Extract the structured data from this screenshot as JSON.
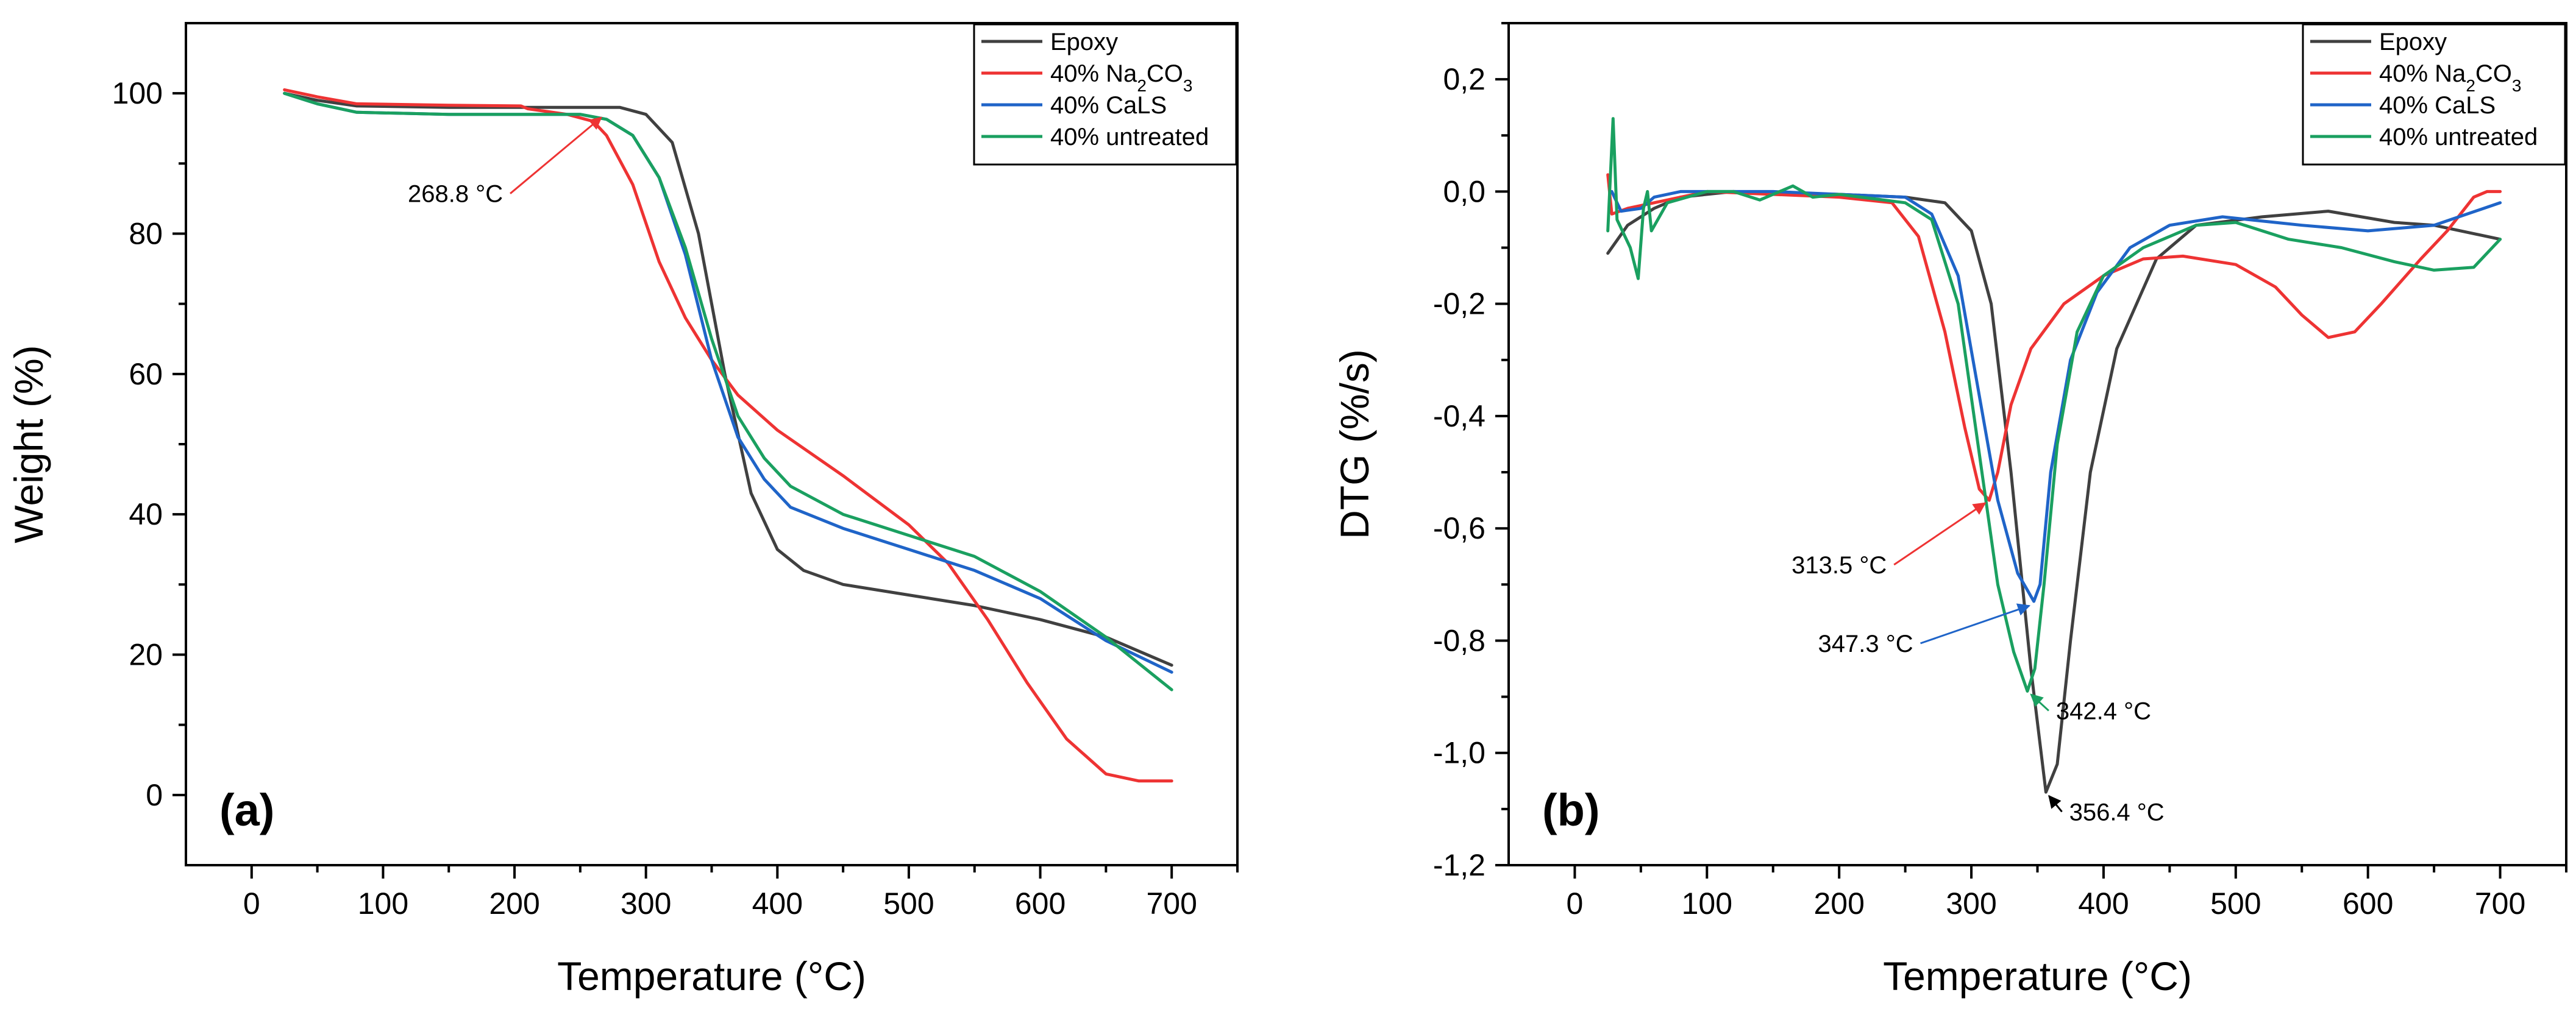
{
  "chart_data": [
    {
      "panel_label": "(a)",
      "type": "line",
      "xlabel": "Temperature (°C)",
      "ylabel": "Weight (%)",
      "xlim": [
        -50,
        750
      ],
      "ylim": [
        -10,
        110
      ],
      "xticks": [
        0,
        100,
        200,
        300,
        400,
        500,
        600,
        700
      ],
      "xtick_labels": [
        "0",
        "100",
        "200",
        "300",
        "400",
        "500",
        "600",
        "700"
      ],
      "yticks": [
        0,
        20,
        40,
        60,
        80,
        100
      ],
      "ytick_labels": [
        "0",
        "20",
        "40",
        "60",
        "80",
        "100"
      ],
      "legend": {
        "position": "top-right",
        "entries": [
          {
            "label": "Epoxy",
            "sub": "",
            "tail": ""
          },
          {
            "label": "40% Na",
            "sub": "2",
            "tail": "CO",
            "sub2": "3"
          },
          {
            "label": "40% CaLS",
            "sub": "",
            "tail": ""
          },
          {
            "label": "40% untreated",
            "sub": "",
            "tail": ""
          }
        ]
      },
      "series": [
        {
          "name": "Epoxy",
          "color": "#404040",
          "points": [
            [
              25,
              100
            ],
            [
              50,
              99
            ],
            [
              80,
              98.2
            ],
            [
              150,
              98
            ],
            [
              250,
              98
            ],
            [
              280,
              98
            ],
            [
              300,
              97
            ],
            [
              320,
              93
            ],
            [
              340,
              80
            ],
            [
              360,
              60
            ],
            [
              380,
              43
            ],
            [
              400,
              35
            ],
            [
              420,
              32
            ],
            [
              450,
              30
            ],
            [
              500,
              28.5
            ],
            [
              550,
              27
            ],
            [
              600,
              25
            ],
            [
              650,
              22.5
            ],
            [
              700,
              18.5
            ]
          ]
        },
        {
          "name": "40% Na2CO3",
          "color": "#ee3333",
          "points": [
            [
              25,
              100.5
            ],
            [
              50,
              99.5
            ],
            [
              80,
              98.5
            ],
            [
              150,
              98.3
            ],
            [
              205,
              98.2
            ],
            [
              210,
              97.8
            ],
            [
              240,
              97
            ],
            [
              260,
              96
            ],
            [
              270,
              94
            ],
            [
              290,
              87
            ],
            [
              310,
              76
            ],
            [
              330,
              68
            ],
            [
              350,
              62
            ],
            [
              370,
              57
            ],
            [
              400,
              52
            ],
            [
              450,
              45.5
            ],
            [
              500,
              38.5
            ],
            [
              530,
              33
            ],
            [
              560,
              25
            ],
            [
              590,
              16
            ],
            [
              620,
              8
            ],
            [
              650,
              3
            ],
            [
              675,
              2
            ],
            [
              700,
              2
            ]
          ]
        },
        {
          "name": "40% CaLS",
          "color": "#1f64c8",
          "points": [
            [
              25,
              100
            ],
            [
              50,
              98.5
            ],
            [
              80,
              97.3
            ],
            [
              150,
              97
            ],
            [
              250,
              97
            ],
            [
              270,
              96.3
            ],
            [
              290,
              94
            ],
            [
              310,
              88
            ],
            [
              330,
              77
            ],
            [
              350,
              62
            ],
            [
              370,
              51
            ],
            [
              390,
              45
            ],
            [
              410,
              41
            ],
            [
              450,
              38
            ],
            [
              500,
              35
            ],
            [
              550,
              32
            ],
            [
              600,
              28
            ],
            [
              650,
              22
            ],
            [
              700,
              17.5
            ]
          ]
        },
        {
          "name": "40% untreated",
          "color": "#1aa060",
          "points": [
            [
              25,
              100
            ],
            [
              50,
              98.5
            ],
            [
              80,
              97.3
            ],
            [
              150,
              97
            ],
            [
              250,
              97
            ],
            [
              270,
              96.3
            ],
            [
              290,
              94
            ],
            [
              310,
              88
            ],
            [
              330,
              78
            ],
            [
              350,
              65
            ],
            [
              370,
              54
            ],
            [
              390,
              48
            ],
            [
              410,
              44
            ],
            [
              450,
              40
            ],
            [
              500,
              37
            ],
            [
              550,
              34
            ],
            [
              600,
              29
            ],
            [
              650,
              22.5
            ],
            [
              700,
              15
            ]
          ]
        }
      ],
      "annotations": [
        {
          "text": "268.8 °C",
          "x": 268.8,
          "y": 97,
          "text_x": 155,
          "text_y": 84.5,
          "arrow_color": "#ee3333"
        }
      ]
    },
    {
      "panel_label": "(b)",
      "type": "line",
      "xlabel": "Temperature (°C)",
      "ylabel": "DTG (%/s)",
      "xlim": [
        -50,
        750
      ],
      "ylim": [
        -1.2,
        0.3
      ],
      "xticks": [
        0,
        100,
        200,
        300,
        400,
        500,
        600,
        700
      ],
      "xtick_labels": [
        "0",
        "100",
        "200",
        "300",
        "400",
        "500",
        "600",
        "700"
      ],
      "yticks": [
        -1.2,
        -1.0,
        -0.8,
        -0.6,
        -0.4,
        -0.2,
        0.0,
        0.2
      ],
      "ytick_labels": [
        "-1,2",
        "-1,0",
        "-0,8",
        "-0,6",
        "-0,4",
        "-0,2",
        "0,0",
        "0,2"
      ],
      "legend": {
        "position": "top-right",
        "entries": [
          {
            "label": "Epoxy",
            "sub": "",
            "tail": ""
          },
          {
            "label": "40% Na",
            "sub": "2",
            "tail": "CO",
            "sub2": "3"
          },
          {
            "label": "40% CaLS",
            "sub": "",
            "tail": ""
          },
          {
            "label": "40% untreated",
            "sub": "",
            "tail": ""
          }
        ]
      },
      "series": [
        {
          "name": "Epoxy",
          "color": "#404040",
          "points": [
            [
              25,
              -0.11
            ],
            [
              40,
              -0.06
            ],
            [
              60,
              -0.03
            ],
            [
              80,
              -0.01
            ],
            [
              120,
              0.0
            ],
            [
              200,
              -0.005
            ],
            [
              250,
              -0.01
            ],
            [
              280,
              -0.02
            ],
            [
              300,
              -0.07
            ],
            [
              315,
              -0.2
            ],
            [
              330,
              -0.5
            ],
            [
              345,
              -0.85
            ],
            [
              356.4,
              -1.07
            ],
            [
              365,
              -1.02
            ],
            [
              375,
              -0.8
            ],
            [
              390,
              -0.5
            ],
            [
              410,
              -0.28
            ],
            [
              440,
              -0.12
            ],
            [
              470,
              -0.06
            ],
            [
              520,
              -0.045
            ],
            [
              570,
              -0.035
            ],
            [
              620,
              -0.055
            ],
            [
              650,
              -0.06
            ],
            [
              700,
              -0.085
            ]
          ]
        },
        {
          "name": "40% Na2CO3",
          "color": "#ee3333",
          "points": [
            [
              25,
              0.03
            ],
            [
              28,
              -0.04
            ],
            [
              40,
              -0.03
            ],
            [
              60,
              -0.02
            ],
            [
              100,
              0.0
            ],
            [
              200,
              -0.01
            ],
            [
              240,
              -0.02
            ],
            [
              260,
              -0.08
            ],
            [
              280,
              -0.25
            ],
            [
              295,
              -0.42
            ],
            [
              306,
              -0.53
            ],
            [
              313.5,
              -0.55
            ],
            [
              320,
              -0.5
            ],
            [
              330,
              -0.38
            ],
            [
              345,
              -0.28
            ],
            [
              370,
              -0.2
            ],
            [
              400,
              -0.15
            ],
            [
              430,
              -0.12
            ],
            [
              460,
              -0.115
            ],
            [
              500,
              -0.13
            ],
            [
              530,
              -0.17
            ],
            [
              550,
              -0.22
            ],
            [
              570,
              -0.26
            ],
            [
              590,
              -0.25
            ],
            [
              610,
              -0.2
            ],
            [
              640,
              -0.12
            ],
            [
              660,
              -0.07
            ],
            [
              680,
              -0.01
            ],
            [
              690,
              0.0
            ],
            [
              700,
              0.0
            ]
          ]
        },
        {
          "name": "40% CaLS",
          "color": "#1f64c8",
          "points": [
            [
              28,
              0.0
            ],
            [
              35,
              -0.035
            ],
            [
              50,
              -0.03
            ],
            [
              60,
              -0.01
            ],
            [
              80,
              0.0
            ],
            [
              150,
              0.0
            ],
            [
              250,
              -0.01
            ],
            [
              270,
              -0.04
            ],
            [
              290,
              -0.15
            ],
            [
              305,
              -0.35
            ],
            [
              320,
              -0.55
            ],
            [
              335,
              -0.68
            ],
            [
              347.3,
              -0.73
            ],
            [
              352,
              -0.7
            ],
            [
              360,
              -0.5
            ],
            [
              375,
              -0.3
            ],
            [
              395,
              -0.18
            ],
            [
              420,
              -0.1
            ],
            [
              450,
              -0.06
            ],
            [
              490,
              -0.045
            ],
            [
              550,
              -0.06
            ],
            [
              600,
              -0.07
            ],
            [
              650,
              -0.06
            ],
            [
              700,
              -0.02
            ]
          ]
        },
        {
          "name": "40% untreated",
          "color": "#1aa060",
          "points": [
            [
              25,
              -0.07
            ],
            [
              29,
              0.13
            ],
            [
              32,
              -0.05
            ],
            [
              42,
              -0.1
            ],
            [
              48,
              -0.155
            ],
            [
              52,
              -0.03
            ],
            [
              55,
              0.0
            ],
            [
              58,
              -0.07
            ],
            [
              70,
              -0.02
            ],
            [
              100,
              0.0
            ],
            [
              120,
              0.0
            ],
            [
              140,
              -0.015
            ],
            [
              165,
              0.01
            ],
            [
              180,
              -0.01
            ],
            [
              200,
              -0.005
            ],
            [
              250,
              -0.02
            ],
            [
              270,
              -0.05
            ],
            [
              290,
              -0.2
            ],
            [
              305,
              -0.45
            ],
            [
              320,
              -0.7
            ],
            [
              332,
              -0.82
            ],
            [
              342.4,
              -0.89
            ],
            [
              348,
              -0.85
            ],
            [
              355,
              -0.7
            ],
            [
              365,
              -0.45
            ],
            [
              380,
              -0.25
            ],
            [
              400,
              -0.15
            ],
            [
              430,
              -0.1
            ],
            [
              470,
              -0.06
            ],
            [
              500,
              -0.055
            ],
            [
              540,
              -0.085
            ],
            [
              580,
              -0.1
            ],
            [
              620,
              -0.125
            ],
            [
              650,
              -0.14
            ],
            [
              680,
              -0.135
            ],
            [
              700,
              -0.085
            ]
          ]
        }
      ],
      "annotations": [
        {
          "text": "313.5 °C",
          "x": 313.5,
          "y": -0.55,
          "text_x": 200,
          "text_y": -0.68,
          "arrow_color": "#ee3333"
        },
        {
          "text": "347.3 °C",
          "x": 347.3,
          "y": -0.735,
          "text_x": 220,
          "text_y": -0.82,
          "arrow_color": "#1f64c8"
        },
        {
          "text": "342.4 °C",
          "x": 342.4,
          "y": -0.89,
          "text_x": 400,
          "text_y": -0.94,
          "arrow_color": "#1aa060"
        },
        {
          "text": "356.4 °C",
          "x": 356.4,
          "y": -1.07,
          "text_x": 410,
          "text_y": -1.12,
          "arrow_color": "#000000"
        }
      ]
    }
  ]
}
